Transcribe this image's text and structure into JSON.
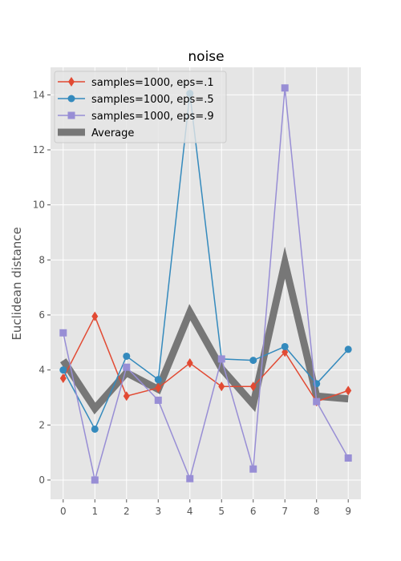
{
  "chart_data": {
    "type": "line",
    "title": "noise",
    "xlabel": "",
    "ylabel": "Euclidean distance",
    "x": [
      0,
      1,
      2,
      3,
      4,
      5,
      6,
      7,
      8,
      9
    ],
    "xlim": [
      -0.4,
      9.4
    ],
    "ylim": [
      -0.7,
      15.0
    ],
    "xticks": [
      0,
      1,
      2,
      3,
      4,
      5,
      6,
      7,
      8,
      9
    ],
    "yticks": [
      0,
      2,
      4,
      6,
      8,
      10,
      12,
      14
    ],
    "grid": true,
    "legend_position": "upper left",
    "series": [
      {
        "name": "samples=1000, eps=.1",
        "color": "#E24A33",
        "marker": "diamond",
        "values": [
          3.7,
          5.95,
          3.05,
          3.35,
          4.25,
          3.4,
          3.4,
          4.65,
          2.85,
          3.25
        ]
      },
      {
        "name": "samples=1000, eps=.5",
        "color": "#348ABD",
        "marker": "circle",
        "values": [
          4.0,
          1.85,
          4.5,
          3.65,
          14.05,
          4.4,
          4.35,
          4.85,
          3.5,
          4.75
        ]
      },
      {
        "name": "samples=1000, eps=.9",
        "color": "#988ED5",
        "marker": "square",
        "values": [
          5.35,
          0.0,
          4.1,
          2.9,
          0.05,
          4.4,
          0.4,
          14.25,
          2.85,
          0.8
        ]
      },
      {
        "name": "Average",
        "color": "#777777",
        "marker": "none",
        "values": [
          4.35,
          2.6,
          3.9,
          3.3,
          6.1,
          4.05,
          2.75,
          7.9,
          3.05,
          2.95
        ]
      }
    ]
  }
}
